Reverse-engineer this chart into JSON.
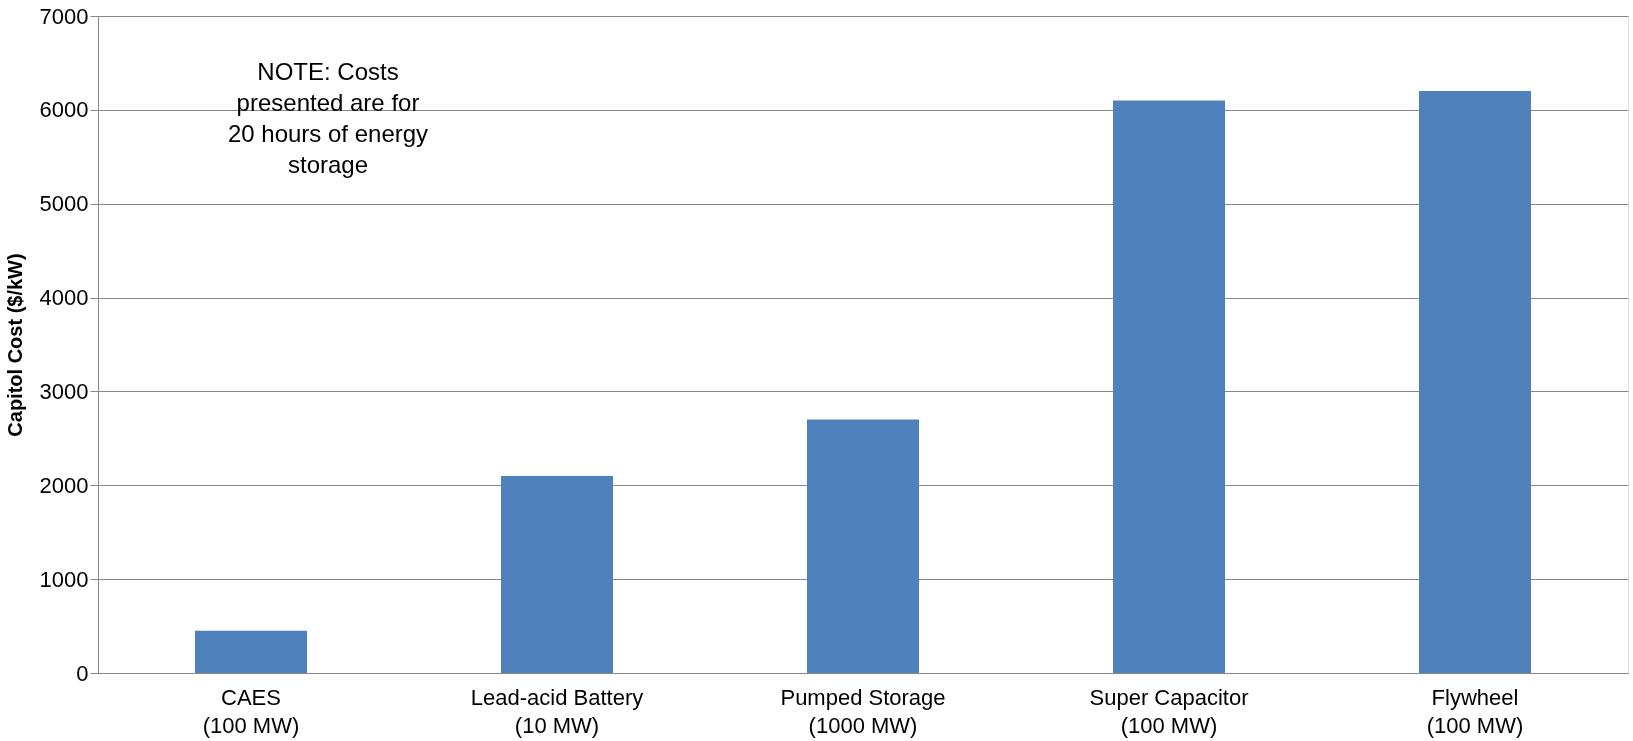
{
  "chart_data": {
    "type": "bar",
    "ylabel": "Capitol Cost ($/kW)",
    "categories": [
      "CAES\n(100 MW)",
      "Lead-acid Battery\n(10 MW)",
      "Pumped Storage\n(1000 MW)",
      "Super Capacitor\n(100 MW)",
      "Flywheel\n(100 MW)"
    ],
    "values": [
      450,
      2100,
      2700,
      6100,
      6200
    ],
    "color": "#4f81bd",
    "ylim": [
      0,
      7000
    ],
    "yticks": [
      0,
      1000,
      2000,
      3000,
      4000,
      5000,
      6000,
      7000
    ],
    "grid": "y",
    "annotations": [
      "NOTE: Costs\npresented are for\n20 hours of energy\nstorage"
    ]
  }
}
